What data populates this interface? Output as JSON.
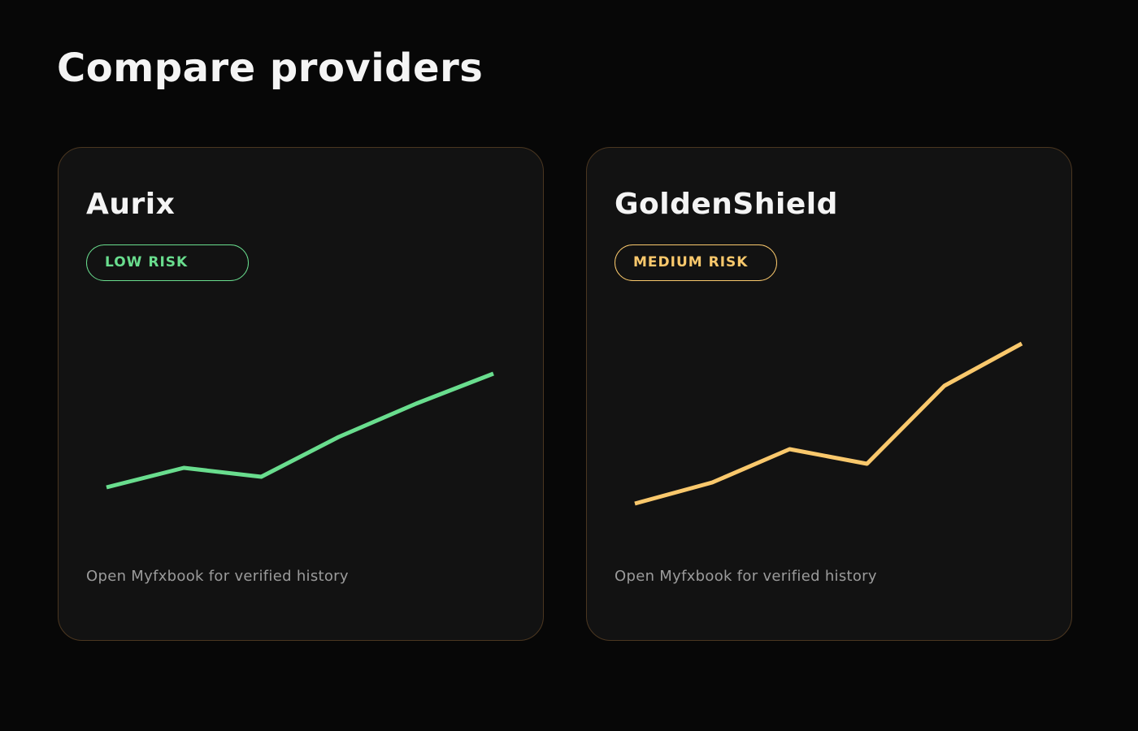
{
  "page": {
    "title": "Compare providers"
  },
  "providers": [
    {
      "name": "Aurix",
      "risk_label": "LOW RISK",
      "color": "#69dd8e",
      "footer": "Open Myfxbook for verified history",
      "series": [
        20,
        44,
        33,
        82,
        123,
        160
      ]
    },
    {
      "name": "GoldenShield",
      "risk_label": "MEDIUM RISK",
      "color": "#f9c86c",
      "footer": "Open Myfxbook for verified history",
      "series": [
        0,
        26,
        67,
        49,
        145,
        197
      ]
    }
  ]
}
